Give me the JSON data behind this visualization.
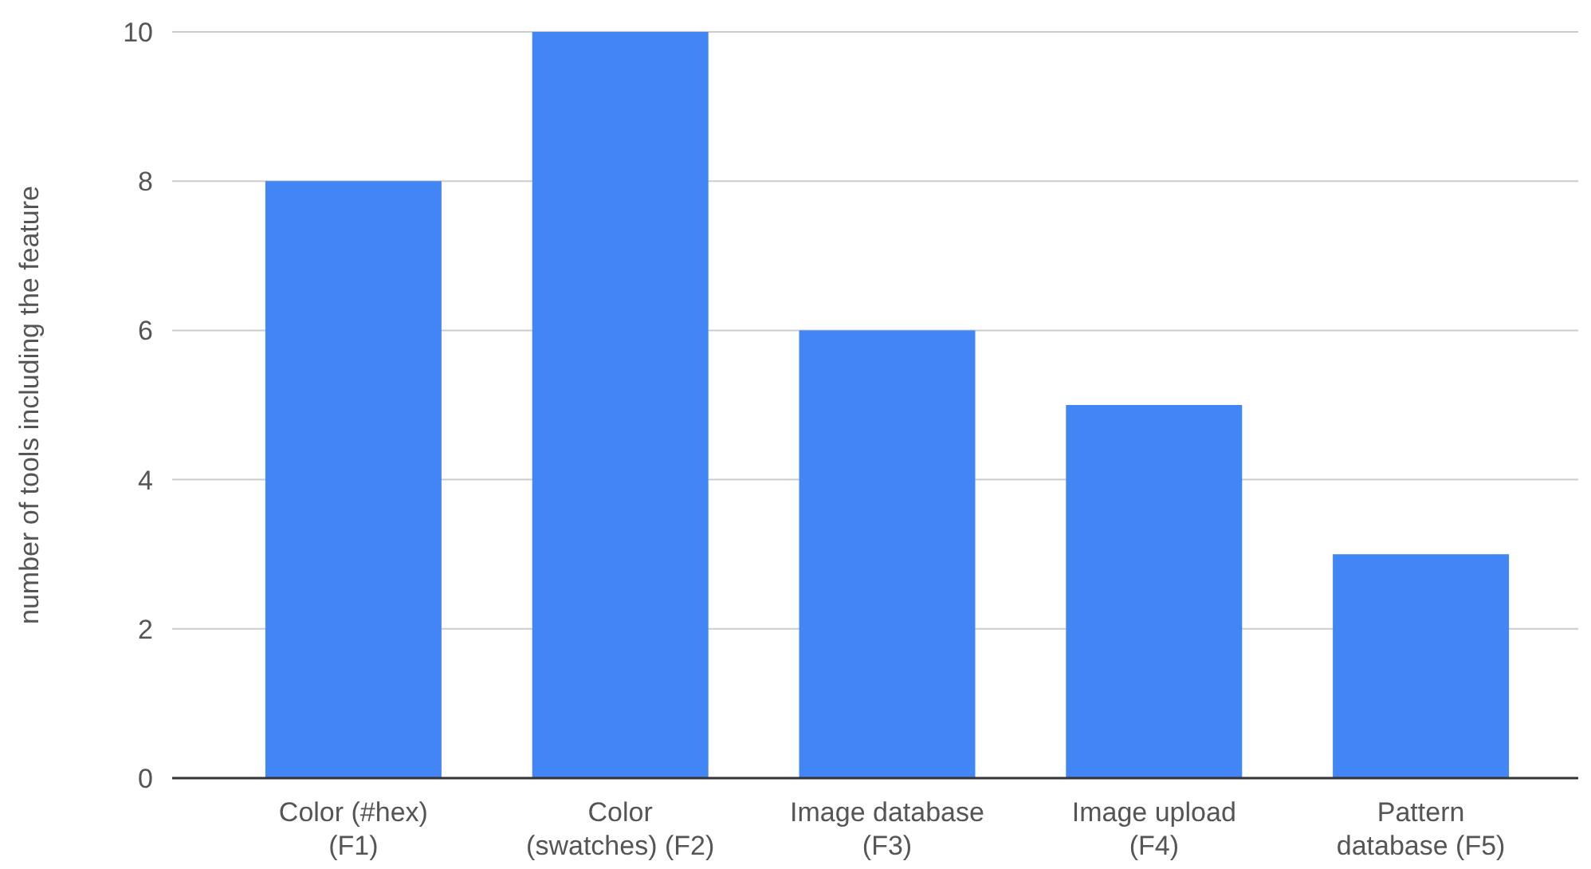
{
  "chart_data": {
    "type": "bar",
    "ylabel": "number of tools including the feature",
    "categories": [
      "Color (#hex)\n(F1)",
      "Color\n(swatches) (F2)",
      "Image database\n(F3)",
      "Image upload\n(F4)",
      "Pattern\ndatabase (F5)"
    ],
    "values": [
      8,
      10,
      6,
      5,
      3
    ],
    "color": "#4285f4",
    "ylim": [
      0,
      10
    ],
    "yticks": [
      0,
      2,
      4,
      6,
      8,
      10
    ],
    "grid": "y"
  }
}
